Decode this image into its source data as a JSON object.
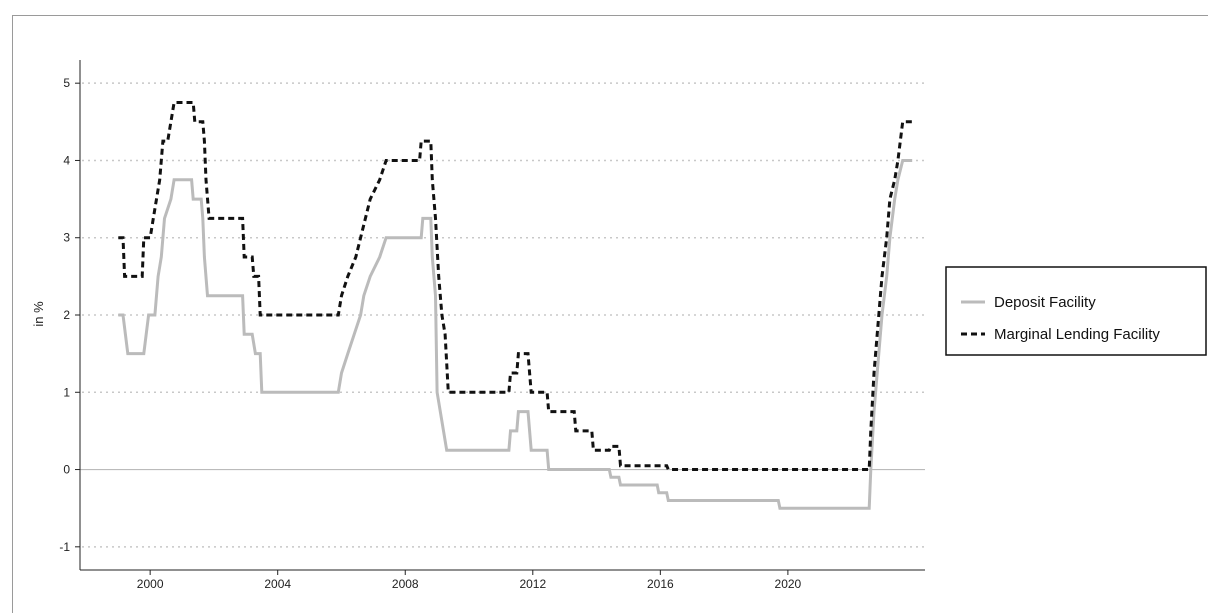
{
  "chart_data": {
    "type": "line",
    "title": "",
    "xlabel": "",
    "ylabel": "in %",
    "xlim": [
      1997.8,
      2024.3
    ],
    "ylim": [
      -1.3,
      5.3
    ],
    "x_ticks": [
      "2000",
      "2004",
      "2008",
      "2012",
      "2016",
      "2020"
    ],
    "y_ticks": [
      "-1",
      "0",
      "1",
      "2",
      "3",
      "4",
      "5"
    ],
    "grid": "horizontal dotted",
    "legend_position": "right",
    "colors": {
      "deposit": "#bbbbbb",
      "lending": "#111111",
      "zero_line": "#bbbbbb",
      "grid": "#c8c8c8"
    },
    "series": [
      {
        "name": "Deposit Facility",
        "style": "solid",
        "points": [
          [
            1999.0,
            2.0
          ],
          [
            1999.15,
            2.0
          ],
          [
            1999.3,
            1.5
          ],
          [
            1999.8,
            1.5
          ],
          [
            1999.95,
            2.0
          ],
          [
            2000.15,
            2.0
          ],
          [
            2000.25,
            2.5
          ],
          [
            2000.35,
            2.75
          ],
          [
            2000.45,
            3.25
          ],
          [
            2000.65,
            3.5
          ],
          [
            2000.75,
            3.75
          ],
          [
            2001.3,
            3.75
          ],
          [
            2001.35,
            3.5
          ],
          [
            2001.6,
            3.5
          ],
          [
            2001.65,
            3.25
          ],
          [
            2001.7,
            2.75
          ],
          [
            2001.8,
            2.25
          ],
          [
            2002.9,
            2.25
          ],
          [
            2002.95,
            1.75
          ],
          [
            2003.2,
            1.75
          ],
          [
            2003.3,
            1.5
          ],
          [
            2003.45,
            1.5
          ],
          [
            2003.5,
            1.0
          ],
          [
            2005.9,
            1.0
          ],
          [
            2006.0,
            1.25
          ],
          [
            2006.2,
            1.5
          ],
          [
            2006.4,
            1.75
          ],
          [
            2006.6,
            2.0
          ],
          [
            2006.7,
            2.25
          ],
          [
            2006.9,
            2.5
          ],
          [
            2007.2,
            2.75
          ],
          [
            2007.4,
            3.0
          ],
          [
            2008.5,
            3.0
          ],
          [
            2008.55,
            3.25
          ],
          [
            2008.8,
            3.25
          ],
          [
            2008.85,
            2.75
          ],
          [
            2008.95,
            2.25
          ],
          [
            2009.0,
            1.0
          ],
          [
            2009.2,
            0.5
          ],
          [
            2009.3,
            0.25
          ],
          [
            2011.25,
            0.25
          ],
          [
            2011.3,
            0.5
          ],
          [
            2011.5,
            0.5
          ],
          [
            2011.55,
            0.75
          ],
          [
            2011.85,
            0.75
          ],
          [
            2011.9,
            0.5
          ],
          [
            2011.95,
            0.25
          ],
          [
            2012.45,
            0.25
          ],
          [
            2012.5,
            0.0
          ],
          [
            2014.4,
            0.0
          ],
          [
            2014.45,
            -0.1
          ],
          [
            2014.7,
            -0.1
          ],
          [
            2014.75,
            -0.2
          ],
          [
            2015.9,
            -0.2
          ],
          [
            2015.95,
            -0.3
          ],
          [
            2016.2,
            -0.3
          ],
          [
            2016.25,
            -0.4
          ],
          [
            2019.7,
            -0.4
          ],
          [
            2019.75,
            -0.5
          ],
          [
            2022.55,
            -0.5
          ],
          [
            2022.6,
            0.0
          ],
          [
            2022.7,
            0.75
          ],
          [
            2022.85,
            1.5
          ],
          [
            2022.95,
            2.0
          ],
          [
            2023.1,
            2.5
          ],
          [
            2023.2,
            3.0
          ],
          [
            2023.35,
            3.5
          ],
          [
            2023.45,
            3.75
          ],
          [
            2023.6,
            4.0
          ],
          [
            2023.9,
            4.0
          ]
        ]
      },
      {
        "name": "Marginal Lending Facility",
        "style": "dashed",
        "points": [
          [
            1999.0,
            3.0
          ],
          [
            1999.15,
            3.0
          ],
          [
            1999.2,
            2.5
          ],
          [
            1999.75,
            2.5
          ],
          [
            1999.8,
            3.0
          ],
          [
            2000.0,
            3.0
          ],
          [
            2000.1,
            3.25
          ],
          [
            2000.2,
            3.5
          ],
          [
            2000.3,
            3.75
          ],
          [
            2000.4,
            4.25
          ],
          [
            2000.55,
            4.25
          ],
          [
            2000.65,
            4.5
          ],
          [
            2000.75,
            4.75
          ],
          [
            2001.35,
            4.75
          ],
          [
            2001.4,
            4.5
          ],
          [
            2001.65,
            4.5
          ],
          [
            2001.7,
            4.25
          ],
          [
            2001.75,
            3.75
          ],
          [
            2001.85,
            3.25
          ],
          [
            2002.9,
            3.25
          ],
          [
            2002.95,
            2.75
          ],
          [
            2003.2,
            2.75
          ],
          [
            2003.25,
            2.5
          ],
          [
            2003.4,
            2.5
          ],
          [
            2003.45,
            2.0
          ],
          [
            2005.9,
            2.0
          ],
          [
            2006.0,
            2.25
          ],
          [
            2006.2,
            2.5
          ],
          [
            2006.45,
            2.75
          ],
          [
            2006.6,
            3.0
          ],
          [
            2006.75,
            3.25
          ],
          [
            2006.9,
            3.5
          ],
          [
            2007.2,
            3.75
          ],
          [
            2007.4,
            4.0
          ],
          [
            2008.45,
            4.0
          ],
          [
            2008.5,
            4.25
          ],
          [
            2008.8,
            4.25
          ],
          [
            2008.85,
            3.75
          ],
          [
            2008.95,
            3.25
          ],
          [
            2009.05,
            2.5
          ],
          [
            2009.15,
            2.0
          ],
          [
            2009.25,
            1.75
          ],
          [
            2009.35,
            1.0
          ],
          [
            2011.25,
            1.0
          ],
          [
            2011.3,
            1.25
          ],
          [
            2011.5,
            1.25
          ],
          [
            2011.55,
            1.5
          ],
          [
            2011.85,
            1.5
          ],
          [
            2011.9,
            1.25
          ],
          [
            2011.95,
            1.0
          ],
          [
            2012.45,
            1.0
          ],
          [
            2012.5,
            0.75
          ],
          [
            2013.3,
            0.75
          ],
          [
            2013.35,
            0.5
          ],
          [
            2013.85,
            0.5
          ],
          [
            2013.9,
            0.25
          ],
          [
            2014.4,
            0.25
          ],
          [
            2014.45,
            0.3
          ],
          [
            2014.7,
            0.3
          ],
          [
            2014.75,
            0.05
          ],
          [
            2016.2,
            0.05
          ],
          [
            2016.25,
            0.0
          ],
          [
            2022.55,
            0.0
          ],
          [
            2022.6,
            0.5
          ],
          [
            2022.7,
            1.25
          ],
          [
            2022.85,
            2.0
          ],
          [
            2022.95,
            2.5
          ],
          [
            2023.1,
            3.0
          ],
          [
            2023.2,
            3.5
          ],
          [
            2023.35,
            3.75
          ],
          [
            2023.45,
            4.0
          ],
          [
            2023.6,
            4.5
          ],
          [
            2023.9,
            4.5
          ]
        ]
      }
    ]
  }
}
